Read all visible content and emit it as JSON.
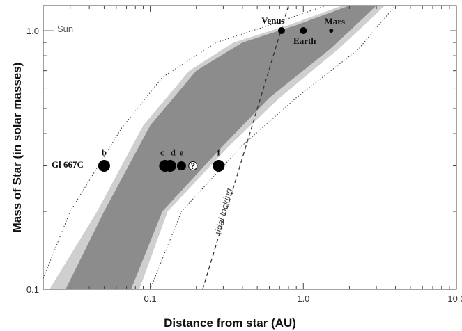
{
  "chart_data": {
    "type": "scatter",
    "xlabel": "Distance from star   (AU)",
    "ylabel": "Mass of Star (in solar masses)",
    "x_scale": "log",
    "y_scale": "log",
    "xlim": [
      0.02,
      10.0
    ],
    "ylim": [
      0.1,
      1.25
    ],
    "x_tick_labels": [
      "0.1",
      "1.0",
      "10.0"
    ],
    "y_tick_labels": [
      "0.1",
      "1.0"
    ],
    "grid": false,
    "star": {
      "name": "Gl 667C",
      "mass": 0.3
    },
    "sun_label": "Sun",
    "tidal_label": "tidal locking",
    "planets": [
      {
        "label": "b",
        "distance": 0.05,
        "mass": 0.3,
        "size": "large"
      },
      {
        "label": "c",
        "distance": 0.125,
        "mass": 0.3,
        "size": "large"
      },
      {
        "label": "d",
        "distance": 0.135,
        "mass": 0.3,
        "size": "large"
      },
      {
        "label": "e",
        "distance": 0.16,
        "mass": 0.3,
        "size": "medium"
      },
      {
        "label": "?",
        "distance": 0.19,
        "mass": 0.3,
        "size": "medium",
        "hollow": true
      },
      {
        "label": "f",
        "distance": 0.28,
        "mass": 0.3,
        "size": "large"
      },
      {
        "label": "Venus",
        "distance": 0.72,
        "mass": 1.0,
        "size": "small"
      },
      {
        "label": "Earth",
        "distance": 1.0,
        "mass": 1.0,
        "size": "small"
      },
      {
        "label": "Mars",
        "distance": 1.52,
        "mass": 1.0,
        "size": "tiny"
      }
    ],
    "habitable_zone": {
      "dark_inner": [
        [
          0.028,
          0.1
        ],
        [
          0.05,
          0.2
        ],
        [
          0.1,
          0.43
        ],
        [
          0.2,
          0.7
        ],
        [
          0.4,
          0.9
        ],
        [
          0.9,
          1.05
        ],
        [
          2.0,
          1.25
        ]
      ],
      "dark_outer": [
        [
          0.075,
          0.1
        ],
        [
          0.12,
          0.2
        ],
        [
          0.3,
          0.36
        ],
        [
          0.6,
          0.55
        ],
        [
          1.5,
          0.85
        ],
        [
          2.2,
          1.05
        ],
        [
          3.0,
          1.25
        ]
      ],
      "light_inner": [
        [
          0.022,
          0.1
        ],
        [
          0.045,
          0.2
        ],
        [
          0.09,
          0.43
        ],
        [
          0.18,
          0.7
        ],
        [
          0.35,
          0.9
        ],
        [
          0.8,
          1.05
        ],
        [
          1.8,
          1.25
        ]
      ],
      "light_outer": [
        [
          0.085,
          0.1
        ],
        [
          0.13,
          0.2
        ],
        [
          0.33,
          0.36
        ],
        [
          0.7,
          0.55
        ],
        [
          1.7,
          0.85
        ],
        [
          2.5,
          1.05
        ],
        [
          3.4,
          1.25
        ]
      ],
      "dotted_inner": [
        [
          0.02,
          0.11
        ],
        [
          0.03,
          0.2
        ],
        [
          0.065,
          0.42
        ],
        [
          0.12,
          0.66
        ],
        [
          0.27,
          0.9
        ],
        [
          0.6,
          1.05
        ],
        [
          1.4,
          1.25
        ]
      ],
      "dotted_outer": [
        [
          0.1,
          0.1
        ],
        [
          0.16,
          0.2
        ],
        [
          0.4,
          0.36
        ],
        [
          0.9,
          0.55
        ],
        [
          2.3,
          0.85
        ],
        [
          3.1,
          1.05
        ],
        [
          4.0,
          1.25
        ]
      ]
    },
    "tidal_locking_line": [
      [
        0.22,
        0.1
      ],
      [
        0.8,
        1.25
      ]
    ],
    "colors": {
      "dark_band": "#8c8c8c",
      "light_band": "#cfcfcf",
      "frame": "#444444",
      "points": "#000000"
    }
  }
}
